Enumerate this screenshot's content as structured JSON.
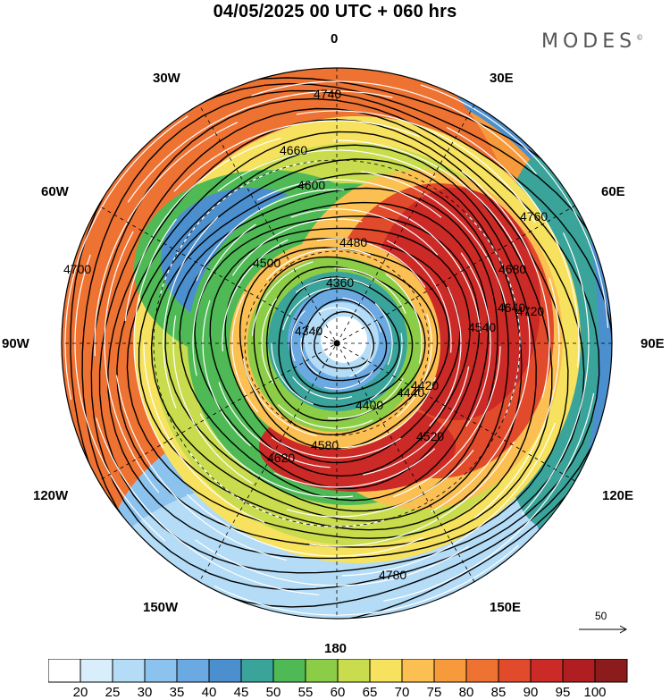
{
  "header": {
    "title": "04/05/2025  00 UTC  + 060 hrs",
    "logo": "MODES"
  },
  "map": {
    "projection": "polar-stereographic-north",
    "longitude_labels": [
      "0",
      "30E",
      "60E",
      "90E",
      "120E",
      "150E",
      "180",
      "150W",
      "120W",
      "90W",
      "60W",
      "30W"
    ],
    "contour_labels": [
      "4340",
      "4360",
      "4400",
      "4420",
      "4440",
      "4480",
      "4500",
      "4520",
      "4540",
      "4580",
      "4600",
      "4620",
      "4640",
      "4660",
      "4680",
      "4700",
      "4720",
      "4740",
      "4760",
      "4780"
    ],
    "center_marker": "pole"
  },
  "scale_vector": {
    "value": "50"
  },
  "colorbar": {
    "colors": [
      "#ffffff",
      "#d8eefa",
      "#b4dcf6",
      "#8cc3ee",
      "#6aa9e2",
      "#4b8fcf",
      "#3aa39a",
      "#4fba55",
      "#8ccd47",
      "#c8dc4e",
      "#f7e25f",
      "#fbbf52",
      "#f79a3c",
      "#ee7232",
      "#e14a2b",
      "#cc2a26",
      "#b01e22",
      "#8c1c1c"
    ],
    "labels": [
      "20",
      "25",
      "30",
      "35",
      "40",
      "45",
      "50",
      "55",
      "60",
      "65",
      "70",
      "75",
      "80",
      "85",
      "90",
      "95",
      "100"
    ]
  }
}
